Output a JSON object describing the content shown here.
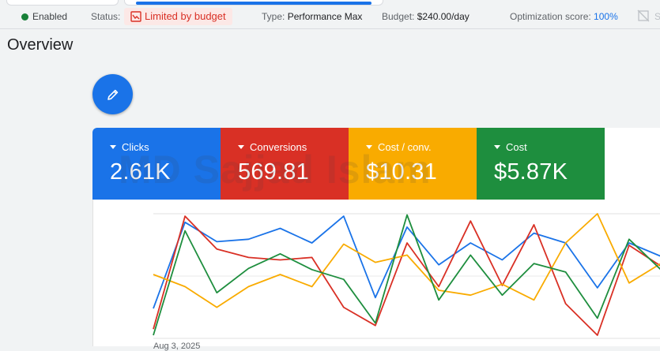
{
  "status_bar": {
    "enabled_label": "Enabled",
    "status_label": "Status:",
    "status_value": "Limited by budget",
    "type_label": "Type:",
    "type_value": "Performance Max",
    "budget_label": "Budget:",
    "budget_value": "$240.00/day",
    "optimization_label": "Optimization score:",
    "optimization_value": "100%",
    "trailing_text": "S"
  },
  "page_title": "Overview",
  "edit_button": {
    "icon": "pencil-icon"
  },
  "scorecards": [
    {
      "label": "Clicks",
      "value": "2.61K",
      "color": "#1a73e8"
    },
    {
      "label": "Conversions",
      "value": "569.81",
      "color": "#d93025"
    },
    {
      "label": "Cost / conv.",
      "value": "$10.31",
      "color": "#f9ab00"
    },
    {
      "label": "Cost",
      "value": "$5.87K",
      "color": "#1e8e3e"
    }
  ],
  "watermark_text": "MD Sajjad Islam",
  "chart_data": {
    "type": "line",
    "x_start_label": "Aug 3, 2025",
    "ylim": [
      0,
      100
    ],
    "series": [
      {
        "color": "#1a73e8",
        "values": [
          22,
          93,
          77,
          79,
          88,
          76,
          98,
          31,
          89,
          58,
          76,
          62,
          84,
          76,
          39,
          76,
          65
        ]
      },
      {
        "color": "#d93025",
        "values": [
          5,
          98,
          71,
          64,
          62,
          64,
          23,
          8,
          76,
          40,
          94,
          41,
          91,
          26,
          0,
          74,
          57
        ]
      },
      {
        "color": "#f9ab00",
        "values": [
          50,
          40,
          23,
          40,
          50,
          40,
          75,
          60,
          66,
          37,
          33,
          42,
          29,
          76,
          100,
          43,
          59
        ]
      },
      {
        "color": "#1e8e3e",
        "values": [
          0,
          86,
          35,
          55,
          67,
          54,
          46,
          10,
          99,
          29,
          66,
          33,
          59,
          52,
          14,
          79,
          54
        ]
      }
    ]
  }
}
